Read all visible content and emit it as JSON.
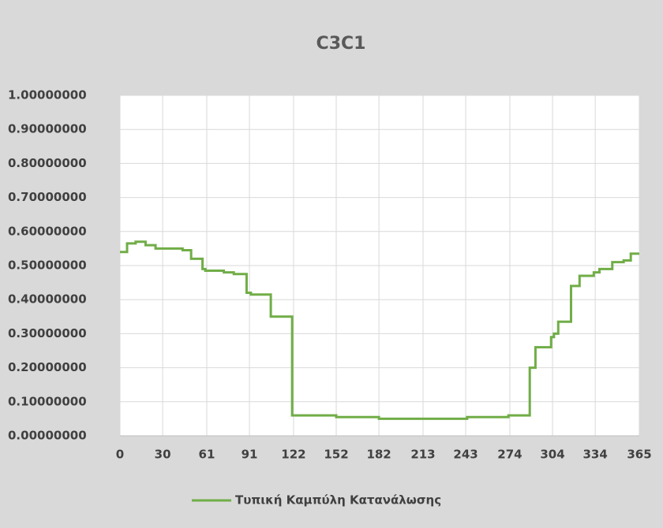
{
  "chart_data": {
    "type": "line",
    "title": "C3C1",
    "series": [
      {
        "name": "Τυπική Καμπύλη Κατανάλωσης",
        "color": "#70ad47",
        "x": [
          0,
          5,
          5,
          11,
          11,
          18,
          18,
          25,
          25,
          44,
          44,
          50,
          50,
          58,
          58,
          60,
          60,
          73,
          73,
          80,
          80,
          89,
          89,
          92,
          92,
          106,
          106,
          121,
          121,
          152,
          152,
          182,
          182,
          244,
          244,
          273,
          273,
          288,
          288,
          292,
          292,
          303,
          303,
          305,
          305,
          308,
          308,
          317,
          317,
          323,
          323,
          333,
          333,
          337,
          337,
          346,
          346,
          354,
          354,
          359,
          359,
          365
        ],
        "values": [
          0.54,
          0.54,
          0.565,
          0.565,
          0.57,
          0.57,
          0.56,
          0.56,
          0.55,
          0.55,
          0.545,
          0.545,
          0.52,
          0.52,
          0.49,
          0.49,
          0.485,
          0.485,
          0.48,
          0.48,
          0.475,
          0.475,
          0.42,
          0.42,
          0.415,
          0.415,
          0.35,
          0.35,
          0.06,
          0.06,
          0.055,
          0.055,
          0.05,
          0.05,
          0.055,
          0.055,
          0.06,
          0.06,
          0.2,
          0.2,
          0.26,
          0.26,
          0.29,
          0.29,
          0.3,
          0.3,
          0.335,
          0.335,
          0.44,
          0.44,
          0.47,
          0.47,
          0.48,
          0.48,
          0.49,
          0.49,
          0.51,
          0.51,
          0.515,
          0.515,
          0.535,
          0.535
        ]
      }
    ],
    "xlim": [
      0,
      365
    ],
    "xticks": [
      0,
      30,
      61,
      91,
      122,
      152,
      182,
      213,
      243,
      274,
      304,
      334,
      365
    ],
    "ylim": [
      0,
      1
    ],
    "yticks": [
      {
        "value": 0,
        "label": "0.00000000"
      },
      {
        "value": 0.1,
        "label": "0.10000000"
      },
      {
        "value": 0.2,
        "label": "0.20000000"
      },
      {
        "value": 0.3,
        "label": "0.30000000"
      },
      {
        "value": 0.4,
        "label": "0.40000000"
      },
      {
        "value": 0.5,
        "label": "0.50000000"
      },
      {
        "value": 0.6,
        "label": "0.60000000"
      },
      {
        "value": 0.7,
        "label": "0.70000000"
      },
      {
        "value": 0.8,
        "label": "0.80000000"
      },
      {
        "value": 0.9,
        "label": "0.90000000"
      },
      {
        "value": 1,
        "label": "1.00000000"
      }
    ],
    "grid": true,
    "legend": "bottom"
  }
}
